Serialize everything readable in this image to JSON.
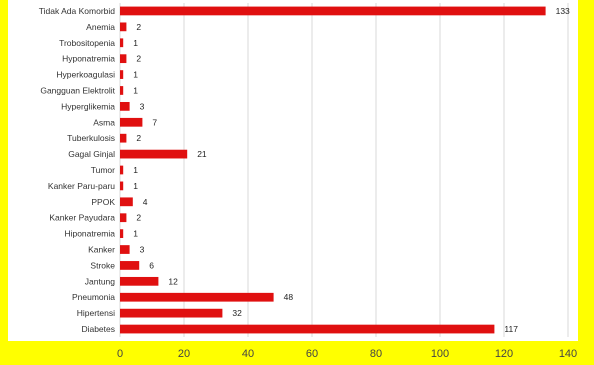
{
  "chart_data": {
    "type": "bar",
    "orientation": "horizontal",
    "categories": [
      "Tidak Ada Komorbid",
      "Anemia",
      "Trobositopenia",
      "Hyponatremia",
      "Hyperkoagulasi",
      "Gangguan Elektrolit",
      "Hyperglikemia",
      "Asma",
      "Tuberkulosis",
      "Gagal Ginjal",
      "Tumor",
      "Kanker Paru-paru",
      "PPOK",
      "Kanker Payudara",
      "Hiponatremia",
      "Kanker",
      "Stroke",
      "Jantung",
      "Pneumonia",
      "Hipertensi",
      "Diabetes"
    ],
    "values": [
      133,
      2,
      1,
      2,
      1,
      1,
      3,
      7,
      2,
      21,
      1,
      1,
      4,
      2,
      1,
      3,
      6,
      12,
      48,
      32,
      117
    ],
    "xlim": [
      0,
      140
    ],
    "xticks": [
      "0",
      "20",
      "40",
      "60",
      "80",
      "100",
      "120",
      "140"
    ],
    "title": "",
    "xlabel": "",
    "ylabel": "",
    "grid": "vertical",
    "legend": "none",
    "colors": {
      "bar": "#e01010",
      "plot_bg": "#ffffff",
      "page_bg": "#ffff00",
      "grid": "#d9d9d9"
    }
  }
}
